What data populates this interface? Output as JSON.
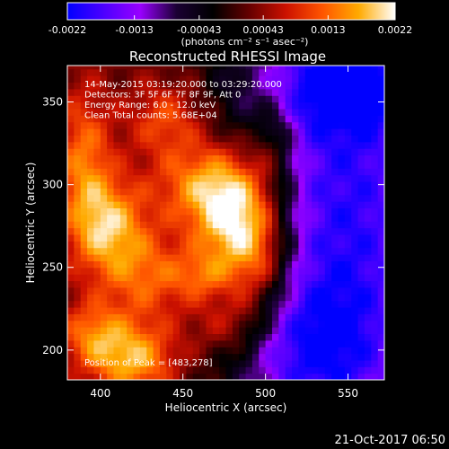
{
  "colors": {
    "background": "#000000",
    "text": "#ffffff",
    "colormap": [
      "#0000ff",
      "#4c00ff",
      "#9900ff",
      "#1a0033",
      "#000000",
      "#660000",
      "#cc1100",
      "#ff5500",
      "#ffaa00",
      "#ffffff"
    ]
  },
  "chart_data": {
    "type": "heatmap",
    "title": "Reconstructed RHESSI Image",
    "xlabel": "Heliocentric X (arcsec)",
    "ylabel": "Heliocentric Y (arcsec)",
    "xlim": [
      380,
      572
    ],
    "ylim": [
      182,
      372
    ],
    "xticks": [
      400,
      450,
      500,
      550
    ],
    "yticks": [
      200,
      250,
      300,
      350
    ],
    "colorbar": {
      "range": [
        -0.0022,
        0.0022
      ],
      "tick_labels": [
        "-0.0022",
        "-0.0013",
        "-0.00043",
        "0.00043",
        "0.0013",
        "0.0022"
      ],
      "unit_label": "(photons cm⁻² s⁻¹ asec⁻²)"
    },
    "annotations": [
      "14-May-2015 03:19:20.000 to 03:29:20.000",
      "Detectors: 3F 5F 6F 7F 8F 9F, Att 0",
      "Energy Range: 6.0 - 12.0 keV",
      "Clean     Total counts: 5.68E+04"
    ],
    "peak_label": "Position of Peak = [483,278]",
    "peak": [
      483,
      278
    ],
    "blobs": [
      {
        "x": 483,
        "y": 278,
        "peak": 0.0022,
        "sx": 18,
        "sy": 26
      },
      {
        "x": 462,
        "y": 300,
        "peak": 0.0012,
        "sx": 22,
        "sy": 18
      },
      {
        "x": 498,
        "y": 250,
        "peak": 0.001,
        "sx": 14,
        "sy": 22
      },
      {
        "x": 405,
        "y": 275,
        "peak": 0.0015,
        "sx": 16,
        "sy": 20
      },
      {
        "x": 390,
        "y": 315,
        "peak": 0.0011,
        "sx": 12,
        "sy": 30
      },
      {
        "x": 430,
        "y": 245,
        "peak": 0.001,
        "sx": 20,
        "sy": 18
      },
      {
        "x": 420,
        "y": 195,
        "peak": 0.0015,
        "sx": 18,
        "sy": 16
      },
      {
        "x": 395,
        "y": 210,
        "peak": 0.001,
        "sx": 14,
        "sy": 14
      },
      {
        "x": 440,
        "y": 340,
        "peak": 0.0009,
        "sx": 16,
        "sy": 16
      },
      {
        "x": 505,
        "y": 330,
        "peak": 0.0008,
        "sx": 10,
        "sy": 22
      },
      {
        "x": 480,
        "y": 215,
        "peak": 0.0008,
        "sx": 18,
        "sy": 14
      },
      {
        "x": 462,
        "y": 245,
        "peak": 0.0007,
        "sx": 12,
        "sy": 10
      },
      {
        "x": 550,
        "y": 280,
        "peak": -0.0022,
        "sx": 45,
        "sy": 120
      },
      {
        "x": 545,
        "y": 360,
        "peak": -0.0012,
        "sx": 40,
        "sy": 20
      },
      {
        "x": 525,
        "y": 200,
        "peak": -0.001,
        "sx": 30,
        "sy": 30
      }
    ],
    "footer_date": "21-Oct-2017 06:50"
  }
}
